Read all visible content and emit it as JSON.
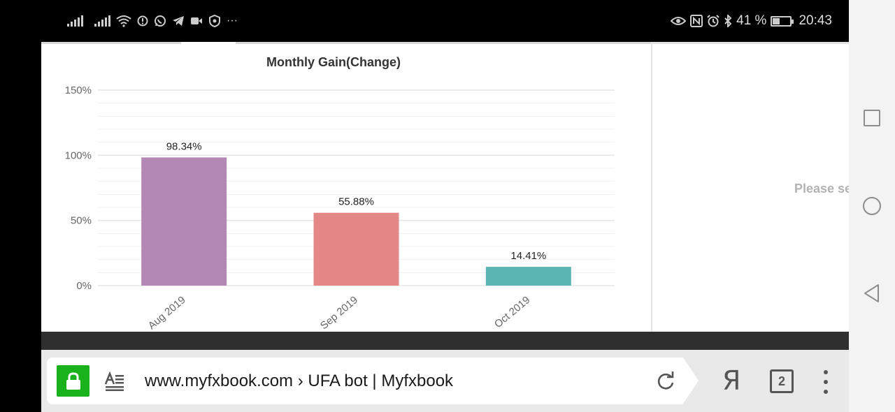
{
  "status_bar": {
    "left_icons": [
      "signal-1-icon",
      "signal-2-icon",
      "wifi-icon",
      "alert-icon",
      "whatsapp-icon",
      "telegram-icon",
      "video-icon",
      "vpn-icon",
      "more-icon"
    ],
    "right_icons": [
      "eye-icon",
      "nfc-icon",
      "alarm-icon",
      "bluetooth-icon"
    ],
    "battery_percent_text": "41 %",
    "battery_level": 0.41,
    "time": "20:43"
  },
  "page": {
    "right_panel_text": "Please se",
    "chart_data": {
      "type": "bar",
      "title": "Monthly Gain(Change)",
      "categories": [
        "Aug 2019",
        "Sep 2019",
        "Oct 2019"
      ],
      "values": [
        98.34,
        55.88,
        14.41
      ],
      "value_labels": [
        "98.34%",
        "55.88%",
        "14.41%"
      ],
      "colors": [
        "#b388b5",
        "#e38887",
        "#5bb5b3"
      ],
      "ylim": [
        0,
        150
      ],
      "yticks": [
        {
          "value": 0,
          "label": "0%"
        },
        {
          "value": 50,
          "label": "50%"
        },
        {
          "value": 100,
          "label": "100%"
        },
        {
          "value": 150,
          "label": "150%"
        }
      ],
      "grid": true,
      "xlabel": "",
      "ylabel": ""
    }
  },
  "browser": {
    "url_text": "www.myfxbook.com › UFA bot | Myfxbook",
    "yandex_label": "Я",
    "tab_count": "2",
    "colors": {
      "lock_bg": "#19b21d"
    }
  },
  "nav": {
    "buttons": [
      "recent-apps",
      "home",
      "back"
    ]
  }
}
